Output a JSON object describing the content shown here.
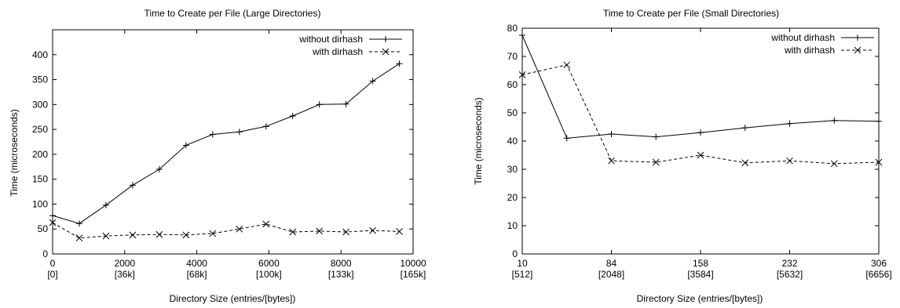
{
  "chart_data": [
    {
      "type": "line",
      "title": "Time to Create per File (Large Directories)",
      "xlabel": "Directory Size (entries/[bytes])",
      "ylabel": "Time (microseconds)",
      "xlim": [
        0,
        10000
      ],
      "ylim": [
        0,
        450
      ],
      "xticks": [
        {
          "value": 0,
          "label": "0",
          "sublabel": "[0]"
        },
        {
          "value": 2000,
          "label": "2000",
          "sublabel": "[36k]"
        },
        {
          "value": 4000,
          "label": "4000",
          "sublabel": "[68k]"
        },
        {
          "value": 6000,
          "label": "6000",
          "sublabel": "[100k]"
        },
        {
          "value": 8000,
          "label": "8000",
          "sublabel": "[133k]"
        },
        {
          "value": 10000,
          "label": "10000",
          "sublabel": "[165k]"
        }
      ],
      "yticks": [
        0,
        50,
        100,
        150,
        200,
        250,
        300,
        350,
        400
      ],
      "grid": false,
      "legend_position": "top-right",
      "series": [
        {
          "name": "without dirhash",
          "marker": "plus",
          "dash": "solid",
          "x": [
            0,
            740,
            1480,
            2220,
            2960,
            3700,
            4440,
            5180,
            5920,
            6660,
            7400,
            8140,
            8880,
            9620
          ],
          "y": [
            77,
            61,
            98,
            138,
            170,
            218,
            240,
            245,
            256,
            277,
            300,
            301,
            347,
            382
          ]
        },
        {
          "name": "with dirhash",
          "marker": "x",
          "dash": "dashed",
          "x": [
            0,
            740,
            1480,
            2220,
            2960,
            3700,
            4440,
            5180,
            5920,
            6660,
            7400,
            8140,
            8880,
            9620
          ],
          "y": [
            63,
            32,
            36,
            38,
            39,
            38,
            41,
            50,
            60,
            44,
            46,
            44,
            47,
            45
          ]
        }
      ]
    },
    {
      "type": "line",
      "title": "Time to Create per File (Small Directories)",
      "xlabel": "Directory Size (entries/[bytes])",
      "ylabel": "Time (microseconds)",
      "xlim": [
        10,
        306
      ],
      "ylim": [
        0,
        80
      ],
      "xticks": [
        {
          "value": 10,
          "label": "10",
          "sublabel": "[512]"
        },
        {
          "value": 84,
          "label": "84",
          "sublabel": "[2048]"
        },
        {
          "value": 158,
          "label": "158",
          "sublabel": "[3584]"
        },
        {
          "value": 232,
          "label": "232",
          "sublabel": "[5632]"
        },
        {
          "value": 306,
          "label": "306",
          "sublabel": "[6656]"
        }
      ],
      "yticks": [
        0,
        10,
        20,
        30,
        40,
        50,
        60,
        70,
        80
      ],
      "grid": false,
      "legend_position": "top-right",
      "series": [
        {
          "name": "without dirhash",
          "marker": "plus",
          "dash": "solid",
          "x": [
            10,
            47,
            84,
            121,
            158,
            195,
            232,
            269,
            306
          ],
          "y": [
            77.5,
            41,
            42.5,
            41.5,
            43,
            44.7,
            46.2,
            47.3,
            47
          ]
        },
        {
          "name": "with dirhash",
          "marker": "x",
          "dash": "dashed",
          "x": [
            10,
            47,
            84,
            121,
            158,
            195,
            232,
            269,
            306
          ],
          "y": [
            63.5,
            67,
            33,
            32.5,
            35,
            32.3,
            33,
            32,
            32.5
          ]
        }
      ]
    }
  ]
}
